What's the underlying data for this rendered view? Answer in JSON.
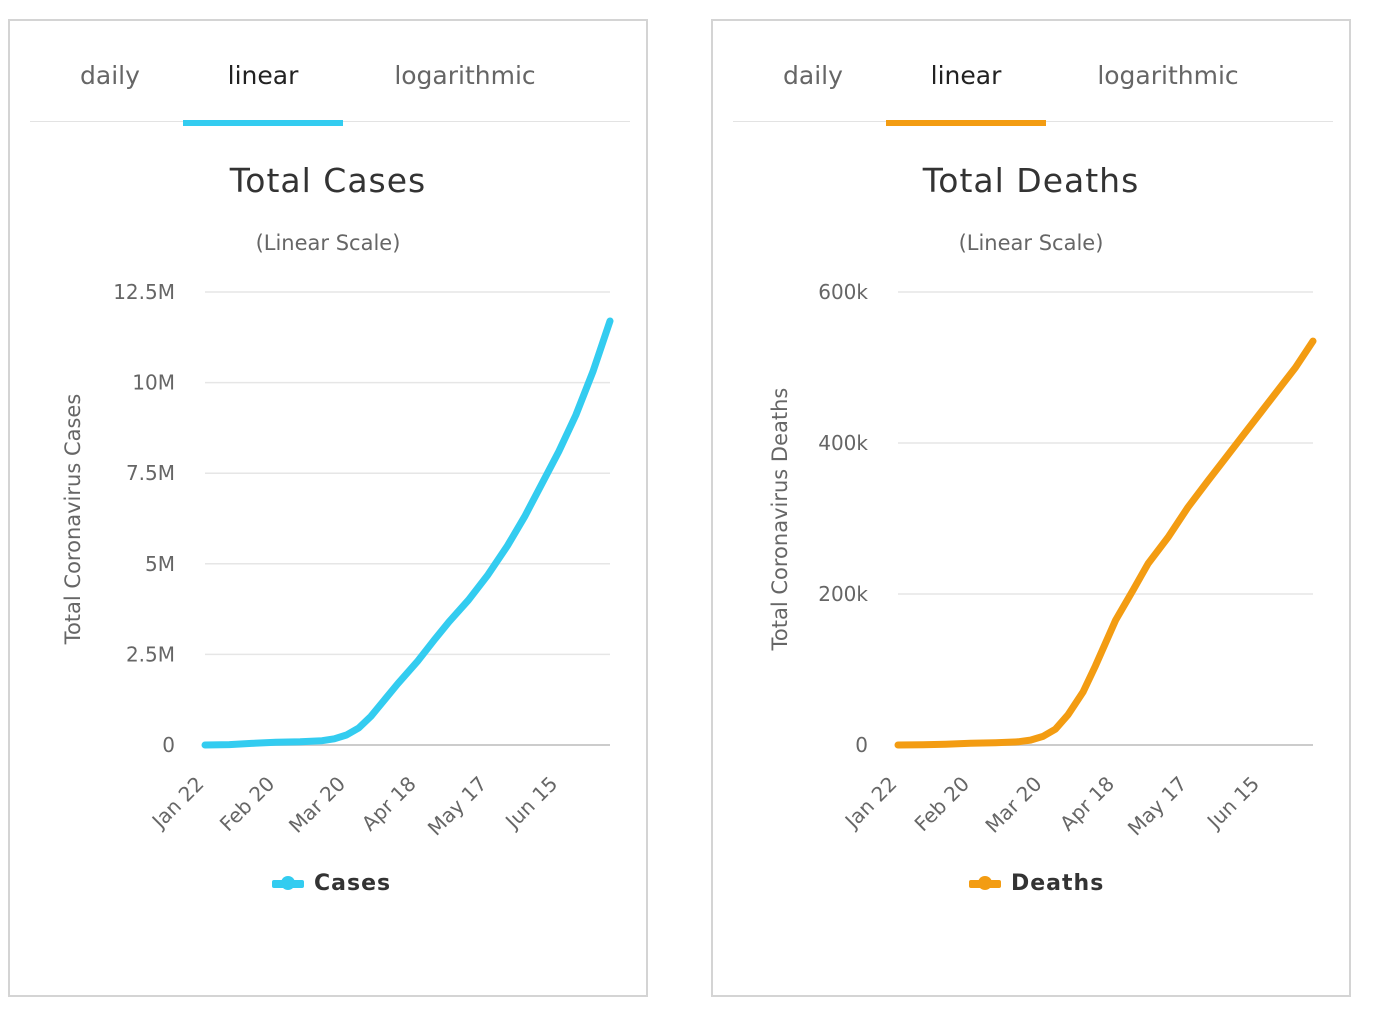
{
  "panels": [
    {
      "tabs": [
        {
          "label": "daily",
          "active": false
        },
        {
          "label": "linear",
          "active": true
        },
        {
          "label": "logarithmic",
          "active": false
        }
      ],
      "accent_color": "#33ccf0",
      "chart_data": {
        "type": "line",
        "title": "Total Cases",
        "subtitle": "(Linear Scale)",
        "ylabel": "Total Coronavirus Cases",
        "xlabel": "",
        "x_ticks": [
          "Jan 22",
          "Feb 20",
          "Mar 20",
          "Apr 18",
          "May 17",
          "Jun 15"
        ],
        "y_ticks": [
          "0",
          "2.5M",
          "5M",
          "7.5M",
          "10M",
          "12.5M"
        ],
        "y_tick_values": [
          0,
          2500000,
          5000000,
          7500000,
          10000000,
          12500000
        ],
        "ylim": [
          0,
          12500000
        ],
        "xlim": [
          "Jan 22",
          "Jul 06"
        ],
        "grid": true,
        "legend": "bottom-center",
        "series": [
          {
            "name": "Cases",
            "color": "#33ccf0",
            "x": [
              "Jan 22",
              "Feb 01",
              "Feb 10",
              "Feb 20",
              "Mar 01",
              "Mar 10",
              "Mar 15",
              "Mar 20",
              "Mar 25",
              "Mar 30",
              "Apr 05",
              "Apr 10",
              "Apr 18",
              "Apr 25",
              "May 01",
              "May 09",
              "May 17",
              "May 25",
              "Jun 01",
              "Jun 08",
              "Jun 15",
              "Jun 22",
              "Jun 29",
              "Jul 06"
            ],
            "values": [
              600,
              12000,
              43000,
              77000,
              88000,
              119000,
              170000,
              275000,
              470000,
              790000,
              1280000,
              1690000,
              2300000,
              2900000,
              3400000,
              4000000,
              4700000,
              5500000,
              6300000,
              7200000,
              8100000,
              9100000,
              10300000,
              11700000
            ]
          }
        ]
      }
    },
    {
      "tabs": [
        {
          "label": "daily",
          "active": false
        },
        {
          "label": "linear",
          "active": true
        },
        {
          "label": "logarithmic",
          "active": false
        }
      ],
      "accent_color": "#f39c12",
      "chart_data": {
        "type": "line",
        "title": "Total Deaths",
        "subtitle": "(Linear Scale)",
        "ylabel": "Total Coronavirus Deaths",
        "xlabel": "",
        "x_ticks": [
          "Jan 22",
          "Feb 20",
          "Mar 20",
          "Apr 18",
          "May 17",
          "Jun 15"
        ],
        "y_ticks": [
          "0",
          "200k",
          "400k",
          "600k"
        ],
        "y_tick_values": [
          0,
          200000,
          400000,
          600000
        ],
        "ylim": [
          0,
          600000
        ],
        "xlim": [
          "Jan 22",
          "Jul 06"
        ],
        "grid": true,
        "legend": "bottom-center",
        "series": [
          {
            "name": "Deaths",
            "color": "#f39c12",
            "x": [
              "Jan 22",
              "Feb 01",
              "Feb 10",
              "Feb 20",
              "Mar 01",
              "Mar 10",
              "Mar 15",
              "Mar 20",
              "Mar 25",
              "Mar 30",
              "Apr 05",
              "Apr 10",
              "Apr 18",
              "Apr 25",
              "May 01",
              "May 09",
              "May 17",
              "May 25",
              "Jun 01",
              "Jun 08",
              "Jun 15",
              "Jun 22",
              "Jun 29",
              "Jul 06"
            ],
            "values": [
              17,
              260,
              1000,
              2200,
              3000,
              4200,
              6500,
              11400,
              21000,
              40000,
              70000,
              105000,
              165000,
              205000,
              240000,
              275000,
              315000,
              350000,
              380000,
              410000,
              440000,
              470000,
              500000,
              535000
            ]
          }
        ]
      }
    }
  ]
}
